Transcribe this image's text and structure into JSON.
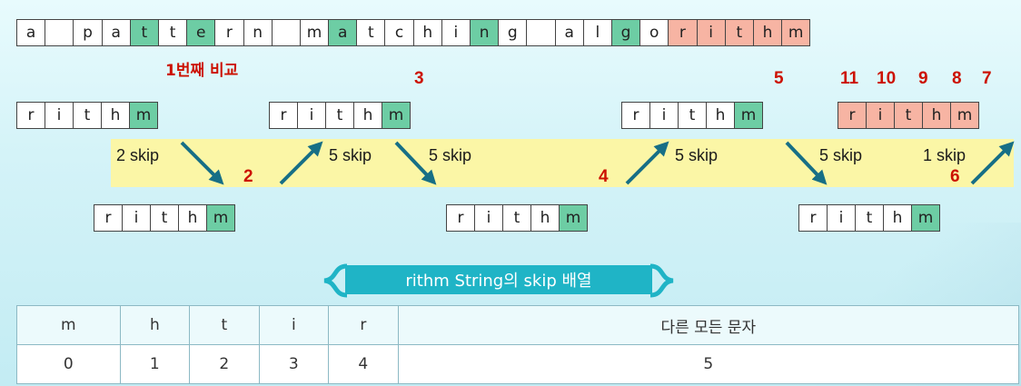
{
  "text_chars": [
    "a",
    "",
    "p",
    "a",
    "t",
    "t",
    "e",
    "r",
    "n",
    "",
    "m",
    "a",
    "t",
    "c",
    "h",
    "i",
    "n",
    "g",
    "",
    "a",
    "l",
    "g",
    "o",
    "r",
    "i",
    "t",
    "h",
    "m"
  ],
  "pattern_chars": [
    "r",
    "i",
    "t",
    "h",
    "m"
  ],
  "first_compare_label": "1번째 비교",
  "compare_numbers": {
    "n1": "3",
    "n2": "5",
    "n3": "11",
    "n4": "10",
    "n5": "9",
    "n6": "8",
    "n7": "7",
    "lower1": "2",
    "lower2": "4",
    "lower3": "6"
  },
  "skip_labels": {
    "s1": "2 skip",
    "s2": "5 skip",
    "s3": "5 skip",
    "s4": "5 skip",
    "s5": "5 skip",
    "s6": "1 skip"
  },
  "table_title": "rithm String의 skip 배열",
  "skip_table": {
    "headers": [
      "m",
      "h",
      "t",
      "i",
      "r",
      "다른 모든 문자"
    ],
    "values": [
      "0",
      "1",
      "2",
      "3",
      "4",
      "5"
    ]
  },
  "colors": {
    "match": "#6dcda4",
    "final_match": "#f7b4a3",
    "number": "#cc1100",
    "arrow": "#176f86",
    "band": "#fbf6a6",
    "title_bg": "#1fb4c6"
  }
}
